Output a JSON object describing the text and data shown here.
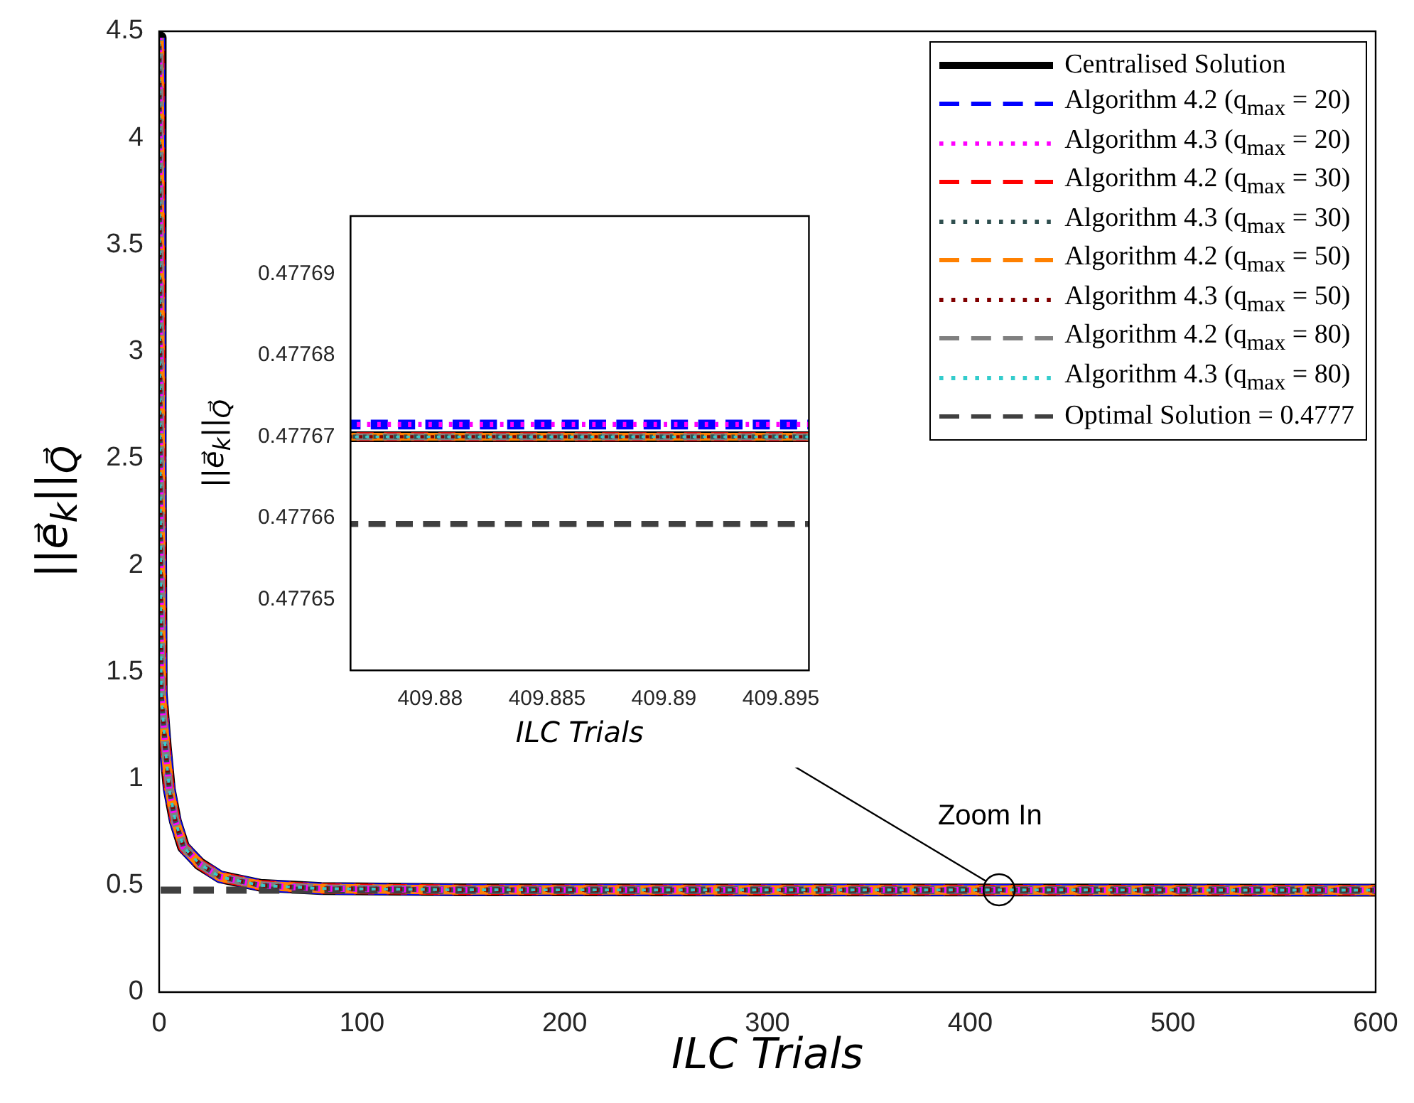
{
  "chart_data": [
    {
      "type": "line",
      "xlabel": "ILC Trials",
      "ylabel": "||e⃗$_{k}$||$_{Q⃗}$",
      "legend": "top right",
      "x": [
        0,
        0.5,
        1,
        3,
        5,
        8,
        12,
        20,
        30,
        50,
        80,
        150,
        600
      ],
      "xlim": [
        0,
        600
      ],
      "xticks": [
        0,
        100,
        200,
        300,
        400,
        500,
        600
      ],
      "ylim": [
        0,
        4.5
      ],
      "yticks": [
        0,
        0.5,
        1,
        1.5,
        2,
        2.5,
        3,
        3.5,
        4,
        4.5
      ],
      "annotations": [
        {
          "text": "Zoom In",
          "x": 414,
          "y": 0.4777
        }
      ],
      "series": [
        {
          "name": "Centralised Solution",
          "color": "#000000",
          "line_style": "solid",
          "values": [
            4.47,
            2.5,
            1.4,
            1.15,
            0.95,
            0.8,
            0.68,
            0.6,
            0.54,
            0.5,
            0.485,
            0.479,
            0.4777
          ]
        },
        {
          "name": "Algorithm 4.2 (q$_{max}$ = 20)",
          "color": "#0000ff",
          "line_style": "dashed",
          "values": [
            4.47,
            2.5,
            1.4,
            1.15,
            0.95,
            0.8,
            0.68,
            0.6,
            0.54,
            0.5,
            0.485,
            0.479,
            0.4777
          ]
        },
        {
          "name": "Algorithm 4.3 (q$_{max}$ = 20)",
          "color": "#ff00ff",
          "line_style": "dotted",
          "values": [
            4.47,
            2.5,
            1.4,
            1.15,
            0.95,
            0.8,
            0.68,
            0.6,
            0.54,
            0.5,
            0.485,
            0.479,
            0.4777
          ]
        },
        {
          "name": "Algorithm 4.2 (q$_{max}$ = 30)",
          "color": "#ff0000",
          "line_style": "dashed",
          "values": [
            4.47,
            2.5,
            1.4,
            1.15,
            0.95,
            0.8,
            0.68,
            0.6,
            0.54,
            0.5,
            0.485,
            0.479,
            0.4777
          ]
        },
        {
          "name": "Algorithm 4.3 (q$_{max}$ = 30)",
          "color": "#2f4f4f",
          "line_style": "dotted",
          "values": [
            4.47,
            2.5,
            1.4,
            1.15,
            0.95,
            0.8,
            0.68,
            0.6,
            0.54,
            0.5,
            0.485,
            0.479,
            0.4777
          ]
        },
        {
          "name": "Algorithm 4.2 (q$_{max}$ = 50)",
          "color": "#ff8000",
          "line_style": "dashed",
          "values": [
            4.47,
            2.5,
            1.4,
            1.15,
            0.95,
            0.8,
            0.68,
            0.6,
            0.54,
            0.5,
            0.485,
            0.479,
            0.4777
          ]
        },
        {
          "name": "Algorithm 4.3 (q$_{max}$ = 50)",
          "color": "#800000",
          "line_style": "dotted",
          "values": [
            4.47,
            2.5,
            1.4,
            1.15,
            0.95,
            0.8,
            0.68,
            0.6,
            0.54,
            0.5,
            0.485,
            0.479,
            0.4777
          ]
        },
        {
          "name": "Algorithm 4.2 (q$_{max}$ = 80)",
          "color": "#808080",
          "line_style": "dashed",
          "values": [
            4.47,
            2.5,
            1.4,
            1.15,
            0.95,
            0.8,
            0.68,
            0.6,
            0.54,
            0.5,
            0.485,
            0.479,
            0.4777
          ]
        },
        {
          "name": "Algorithm 4.3 (q$_{max}$ = 80)",
          "color": "#33cccc",
          "line_style": "dotted",
          "values": [
            4.47,
            2.5,
            1.4,
            1.15,
            0.95,
            0.8,
            0.68,
            0.6,
            0.54,
            0.5,
            0.485,
            0.479,
            0.4777
          ]
        },
        {
          "name": "Optimal Solution = 0.4777",
          "color": "#404040",
          "line_style": "dashed",
          "values": [
            0.4777,
            0.4777,
            0.4777,
            0.4777,
            0.4777,
            0.4777,
            0.4777,
            0.4777,
            0.4777,
            0.4777,
            0.4777,
            0.4777,
            0.4777
          ]
        }
      ]
    },
    {
      "type": "line",
      "xlabel": "ILC Trials",
      "ylabel": "||e⃗$_{k}$||$_{Q⃗}$",
      "x": [
        409.8766,
        409.8962
      ],
      "xlim": [
        409.8766,
        409.8962
      ],
      "xticks": [
        409.88,
        409.885,
        409.89,
        409.895
      ],
      "ylim": [
        0.4776413,
        0.4776971
      ],
      "yticks": [
        0.47765,
        0.47766,
        0.47767,
        0.47768,
        0.47769
      ],
      "series": [
        {
          "color": "#000000",
          "line_style": "solid",
          "values": [
            0.47767,
            0.47767
          ]
        },
        {
          "color": "#0000ff",
          "line_style": "dashed",
          "values": [
            0.4776715,
            0.4776715
          ]
        },
        {
          "color": "#ff00ff",
          "line_style": "dotted",
          "values": [
            0.4776715,
            0.4776715
          ]
        },
        {
          "color": "#ff0000",
          "line_style": "dashed",
          "values": [
            0.47767,
            0.47767
          ]
        },
        {
          "color": "#2f4f4f",
          "line_style": "dotted",
          "values": [
            0.47767,
            0.47767
          ]
        },
        {
          "color": "#ff8000",
          "line_style": "dashed",
          "values": [
            0.47767,
            0.47767
          ]
        },
        {
          "color": "#800000",
          "line_style": "dotted",
          "values": [
            0.47767,
            0.47767
          ]
        },
        {
          "color": "#808080",
          "line_style": "dashed",
          "values": [
            0.47767,
            0.47767
          ]
        },
        {
          "color": "#33cccc",
          "line_style": "dotted",
          "values": [
            0.47767,
            0.47767
          ]
        },
        {
          "color": "#404040",
          "line_style": "dashed",
          "values": [
            0.4776593,
            0.4776593
          ]
        }
      ]
    }
  ]
}
